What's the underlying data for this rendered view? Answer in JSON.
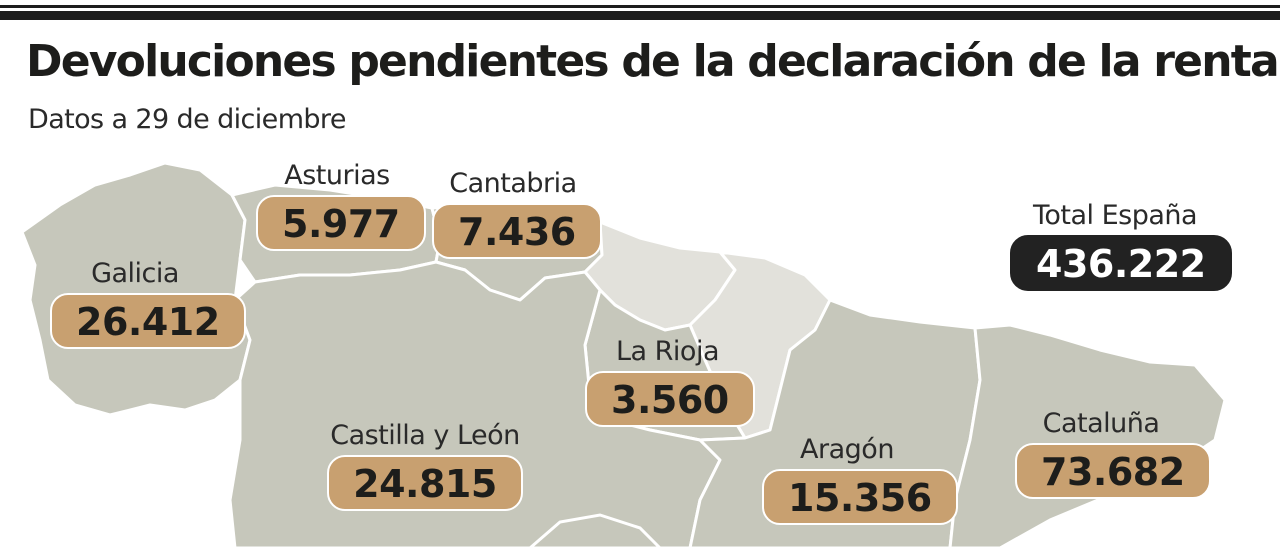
{
  "header": {
    "title": "Devoluciones pendientes de la declaración de la renta",
    "subtitle": "Datos a 29 de diciembre"
  },
  "colors": {
    "land": "#c6c7bb",
    "land_light": "#e2e1db",
    "value_box": "#c8a070",
    "total_box": "#222222",
    "borders": "#ffffff"
  },
  "regions": [
    {
      "key": "asturias",
      "name": "Asturias",
      "value": "5.977"
    },
    {
      "key": "cantabria",
      "name": "Cantabria",
      "value": "7.436"
    },
    {
      "key": "galicia",
      "name": "Galicia",
      "value": "26.412"
    },
    {
      "key": "la_rioja",
      "name": "La Rioja",
      "value": "3.560"
    },
    {
      "key": "castilla_leon",
      "name": "Castilla y León",
      "value": "24.815"
    },
    {
      "key": "aragon",
      "name": "Aragón",
      "value": "15.356"
    },
    {
      "key": "cataluna",
      "name": "Cataluña",
      "value": "73.682"
    }
  ],
  "total": {
    "name": "Total España",
    "value": "436.222"
  }
}
